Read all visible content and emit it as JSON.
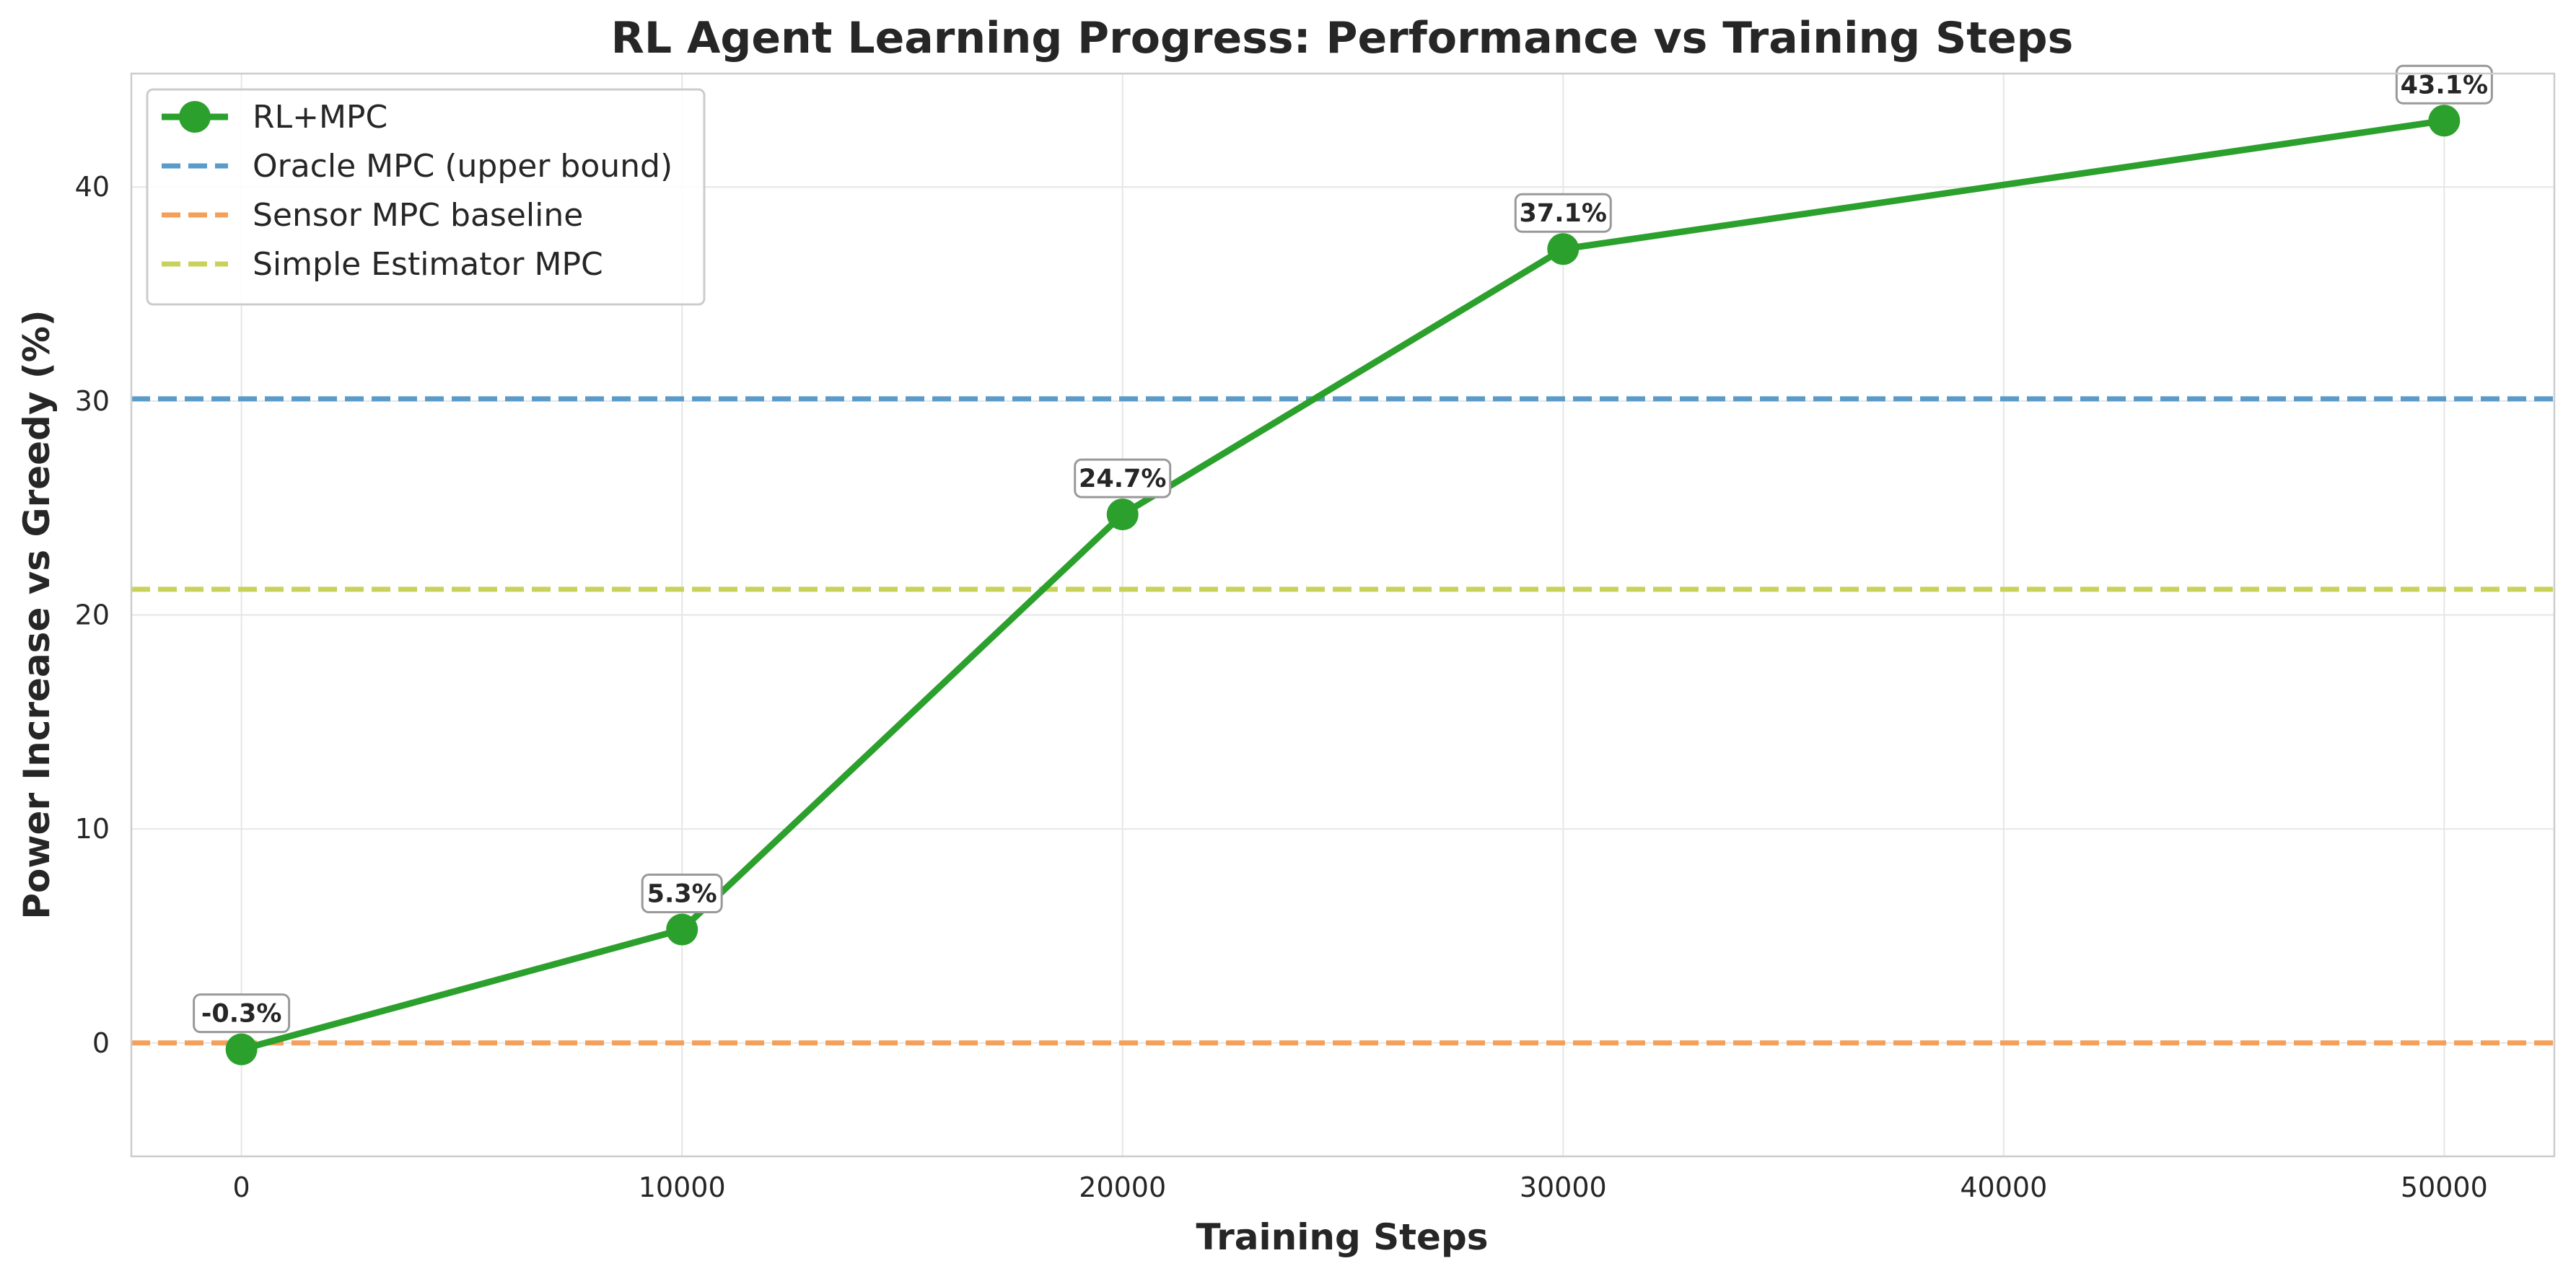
{
  "chart_data": {
    "type": "line",
    "title": "RL Agent Learning Progress: Performance vs Training Steps",
    "xlabel": "Training Steps",
    "ylabel": "Power Increase vs Greedy (%)",
    "xlim": [
      -2500,
      52500
    ],
    "ylim": [
      -5.3,
      45.3
    ],
    "xticks": [
      0,
      10000,
      20000,
      30000,
      40000,
      50000
    ],
    "yticks": [
      0,
      10,
      20,
      30,
      40
    ],
    "grid": true,
    "legend_position": "top-left",
    "series": [
      {
        "name": "RL+MPC",
        "style": "line-marker",
        "color": "#2ca02c",
        "x": [
          0,
          10000,
          20000,
          30000,
          50000
        ],
        "y": [
          -0.3,
          5.3,
          24.7,
          37.1,
          43.1
        ],
        "labels": [
          "-0.3%",
          "5.3%",
          "24.7%",
          "37.1%",
          "43.1%"
        ]
      }
    ],
    "reference_lines": [
      {
        "name": "Oracle MPC (upper bound)",
        "y": 30.1,
        "color": "#5a9bc9"
      },
      {
        "name": "Sensor MPC baseline",
        "y": 0.0,
        "color": "#f5a05a"
      },
      {
        "name": "Simple Estimator MPC",
        "y": 21.2,
        "color": "#c8d25a"
      }
    ]
  }
}
